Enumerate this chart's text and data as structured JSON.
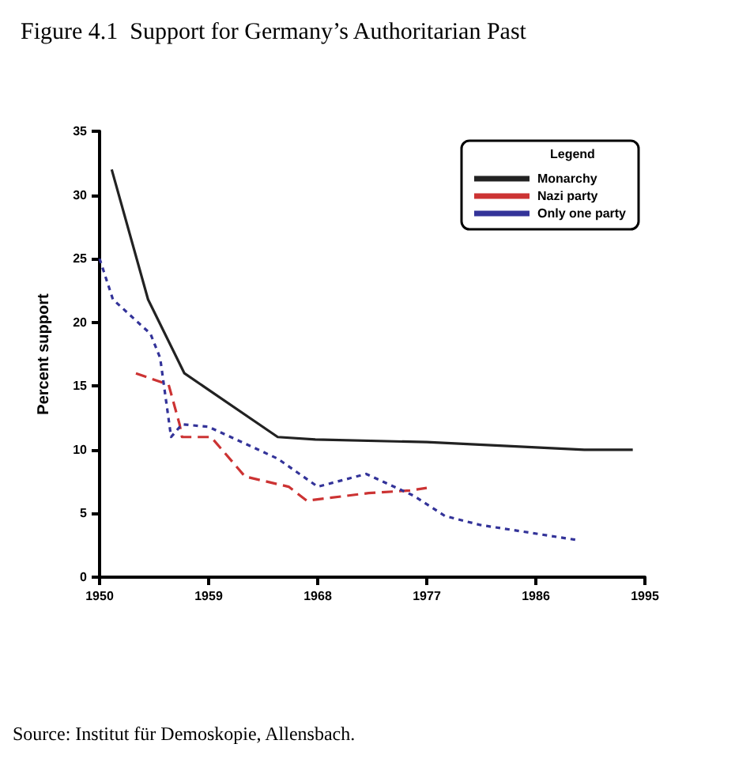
{
  "chart_data": {
    "type": "line",
    "title": "Figure 4.1  Support for Germany’s Authoritarian Past",
    "ylabel": "Percent support",
    "legend_title": "Legend",
    "legend": "top right",
    "grid": false,
    "marker": "none",
    "xlim": [
      1950,
      1995
    ],
    "xticks": [
      1950,
      1959,
      1968,
      1977,
      1986,
      1995
    ],
    "ylim": [
      0,
      35
    ],
    "yticks": [
      0,
      5,
      10,
      15,
      20,
      25,
      30,
      35
    ],
    "series": [
      {
        "name": "Monarchy",
        "color": "#222222",
        "line_style": "solid",
        "x": [
          1951,
          1954,
          1957,
          1964.7,
          1967.8,
          1977,
          1990,
          1994
        ],
        "values": [
          32,
          21.8,
          16,
          11,
          10.8,
          10.6,
          10,
          10
        ]
      },
      {
        "name": "Nazi party",
        "color": "#cc3333",
        "line_style": "dashed",
        "x": [
          1953,
          1955.7,
          1956.6,
          1956.8,
          1959.2,
          1962,
          1965.6,
          1967.1,
          1972.2,
          1975.6,
          1977
        ],
        "values": [
          16,
          15.1,
          12,
          11,
          11,
          7.9,
          7.1,
          6,
          6.6,
          6.8,
          7
        ]
      },
      {
        "name": "Only one party",
        "color": "#333399",
        "line_style": "dotted",
        "x": [
          1950,
          1951.1,
          1954.2,
          1955,
          1955.9,
          1956.8,
          1959,
          1964.7,
          1968,
          1972,
          1975.9,
          1978.5,
          1981.4,
          1989.5
        ],
        "values": [
          25,
          21.8,
          19.1,
          17.2,
          11,
          12,
          11.8,
          9.3,
          7.1,
          8.1,
          6.4,
          4.8,
          4.1,
          2.9
        ]
      }
    ],
    "annotations": [
      "Source: Institut für Demoskopie, Allensbach."
    ]
  }
}
